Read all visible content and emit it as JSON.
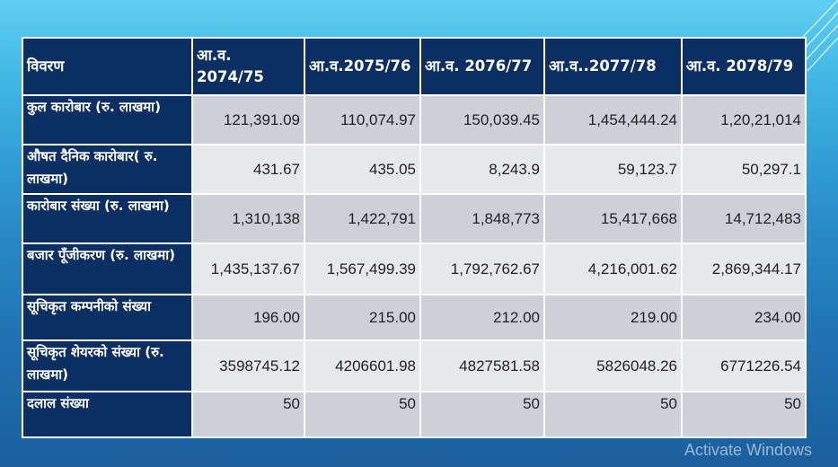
{
  "table": {
    "headers": [
      "विवरण",
      "आ.व. 2074/75",
      "आ.व.2075/76",
      "आ.व. 2076/77",
      "आ.व..2077/78",
      "आ.व. 2078/79"
    ],
    "rows": [
      {
        "label": "कुल कारोबार (रु. लाखमा)",
        "values": [
          "121,391.09",
          "110,074.97",
          "150,039.45",
          "1,454,444.24",
          "1,20,21,014"
        ]
      },
      {
        "label": "औषत दैनिक कारोबार( रु. लाखमा)",
        "values": [
          "431.67",
          "435.05",
          "8,243.9",
          "59,123.7",
          "50,297.1"
        ]
      },
      {
        "label": "कारोबार संख्या (रु. लाखमा)",
        "values": [
          "1,310,138",
          "1,422,791",
          "1,848,773",
          "15,417,668",
          "14,712,483"
        ]
      },
      {
        "label": "बजार पूँजीकरण (रु. लाखमा)",
        "values": [
          "1,435,137.67",
          "1,567,499.39",
          "1,792,762.67",
          "4,216,001.62",
          "2,869,344.17"
        ]
      },
      {
        "label": "सूचिकृत कम्पनीको संख्या",
        "values": [
          "196.00",
          "215.00",
          "212.00",
          "219.00",
          "234.00"
        ]
      },
      {
        "label": "सूचिकृत शेयरको संख्या (रु. लाखमा)",
        "values": [
          "3598745.12",
          "4206601.98",
          "4827581.58",
          "5826048.26",
          "6771226.54"
        ]
      },
      {
        "label": "दलाल संख्या",
        "values": [
          "50",
          "50",
          "50",
          "50",
          "50"
        ]
      }
    ]
  },
  "watermark": "Activate Windows"
}
